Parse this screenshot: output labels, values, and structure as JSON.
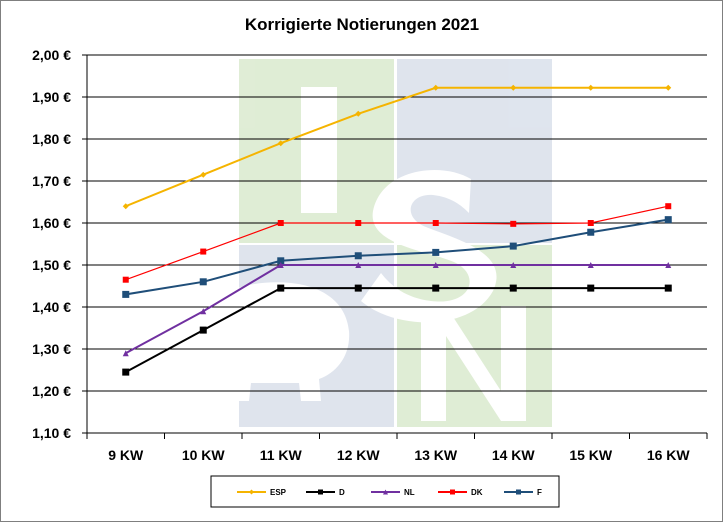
{
  "chart_data": {
    "type": "line",
    "title": "Korrigierte Notierungen 2021",
    "xlabel": "",
    "ylabel": "",
    "categories": [
      "9 KW",
      "10 KW",
      "11 KW",
      "12 KW",
      "13 KW",
      "14 KW",
      "15 KW",
      "16 KW"
    ],
    "ylim": [
      1.1,
      2.0
    ],
    "yticks": [
      1.1,
      1.2,
      1.3,
      1.4,
      1.5,
      1.6,
      1.7,
      1.8,
      1.9,
      2.0
    ],
    "ytick_labels": [
      "1,10 €",
      "1,20 €",
      "1,30 €",
      "1,40 €",
      "1,50 €",
      "1,60 €",
      "1,70 €",
      "1,80 €",
      "1,90 €",
      "2,00 €"
    ],
    "grid": "horizontal",
    "legend_position": "bottom",
    "series": [
      {
        "name": "ESP",
        "color": "#f5b400",
        "marker": "diamond",
        "values": [
          1.64,
          1.715,
          1.79,
          1.86,
          1.922,
          1.922,
          1.922,
          1.922
        ]
      },
      {
        "name": "D",
        "color": "#000000",
        "marker": "square",
        "values": [
          1.245,
          1.345,
          1.445,
          1.445,
          1.445,
          1.445,
          1.445,
          1.445
        ]
      },
      {
        "name": "NL",
        "color": "#7030a0",
        "marker": "triangle",
        "values": [
          1.29,
          1.39,
          1.5,
          1.5,
          1.5,
          1.5,
          1.5,
          1.5
        ]
      },
      {
        "name": "DK",
        "color": "#ff0000",
        "marker": "square",
        "values": [
          1.465,
          1.532,
          1.6,
          1.6,
          1.6,
          1.598,
          1.6,
          1.64
        ]
      },
      {
        "name": "F",
        "color": "#1f4e79",
        "marker": "square",
        "values": [
          1.43,
          1.46,
          1.51,
          1.522,
          1.53,
          1.545,
          1.578,
          1.608
        ]
      }
    ]
  }
}
